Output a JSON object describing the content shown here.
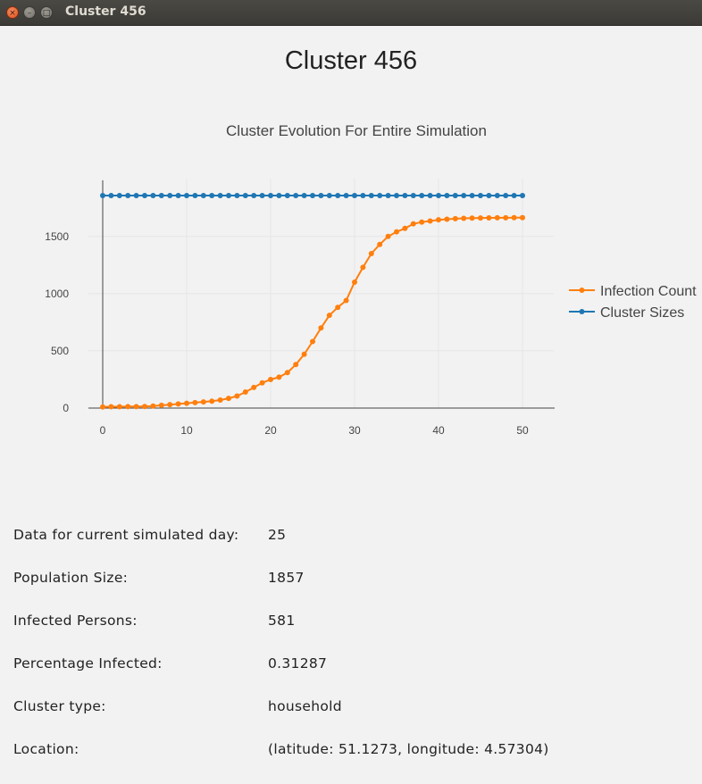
{
  "window": {
    "title": "Cluster 456",
    "close_glyph": "×",
    "min_glyph": "–",
    "max_glyph": "□"
  },
  "page": {
    "title": "Cluster 456"
  },
  "chart_data": {
    "type": "line",
    "title": "Cluster Evolution For Entire Simulation",
    "xlabel": "",
    "ylabel": "",
    "xlim": [
      0,
      50
    ],
    "ylim": [
      0,
      1900
    ],
    "x_ticks": [
      0,
      10,
      20,
      30,
      40,
      50
    ],
    "y_ticks": [
      0,
      500,
      1000,
      1500
    ],
    "grid": true,
    "legend_position": "right",
    "x": [
      0,
      1,
      2,
      3,
      4,
      5,
      6,
      7,
      8,
      9,
      10,
      11,
      12,
      13,
      14,
      15,
      16,
      17,
      18,
      19,
      20,
      21,
      22,
      23,
      24,
      25,
      26,
      27,
      28,
      29,
      30,
      31,
      32,
      33,
      34,
      35,
      36,
      37,
      38,
      39,
      40,
      41,
      42,
      43,
      44,
      45,
      46,
      47,
      48,
      49,
      50
    ],
    "series": [
      {
        "name": "Infection Count",
        "color": "#ff7f0e",
        "values": [
          10,
          12,
          12,
          13,
          13,
          14,
          18,
          24,
          30,
          36,
          42,
          48,
          54,
          60,
          70,
          85,
          105,
          140,
          180,
          220,
          250,
          270,
          310,
          380,
          470,
          581,
          700,
          810,
          880,
          940,
          1100,
          1230,
          1350,
          1430,
          1500,
          1540,
          1570,
          1610,
          1625,
          1635,
          1645,
          1650,
          1655,
          1658,
          1660,
          1661,
          1662,
          1663,
          1663,
          1664,
          1664
        ]
      },
      {
        "name": "Cluster Sizes",
        "color": "#1f77b4",
        "values": [
          1857,
          1857,
          1857,
          1857,
          1857,
          1857,
          1857,
          1857,
          1857,
          1857,
          1857,
          1857,
          1857,
          1857,
          1857,
          1857,
          1857,
          1857,
          1857,
          1857,
          1857,
          1857,
          1857,
          1857,
          1857,
          1857,
          1857,
          1857,
          1857,
          1857,
          1857,
          1857,
          1857,
          1857,
          1857,
          1857,
          1857,
          1857,
          1857,
          1857,
          1857,
          1857,
          1857,
          1857,
          1857,
          1857,
          1857,
          1857,
          1857,
          1857,
          1857
        ]
      }
    ]
  },
  "info": [
    {
      "label": "Data for current simulated day:",
      "value": "25"
    },
    {
      "label": "Population Size:",
      "value": "1857"
    },
    {
      "label": "Infected Persons:",
      "value": "581"
    },
    {
      "label": "Percentage Infected:",
      "value": "0.31287"
    },
    {
      "label": "Cluster type:",
      "value": "household"
    },
    {
      "label": "Location:",
      "value": "(latitude: 51.1273, longitude: 4.57304)"
    }
  ]
}
